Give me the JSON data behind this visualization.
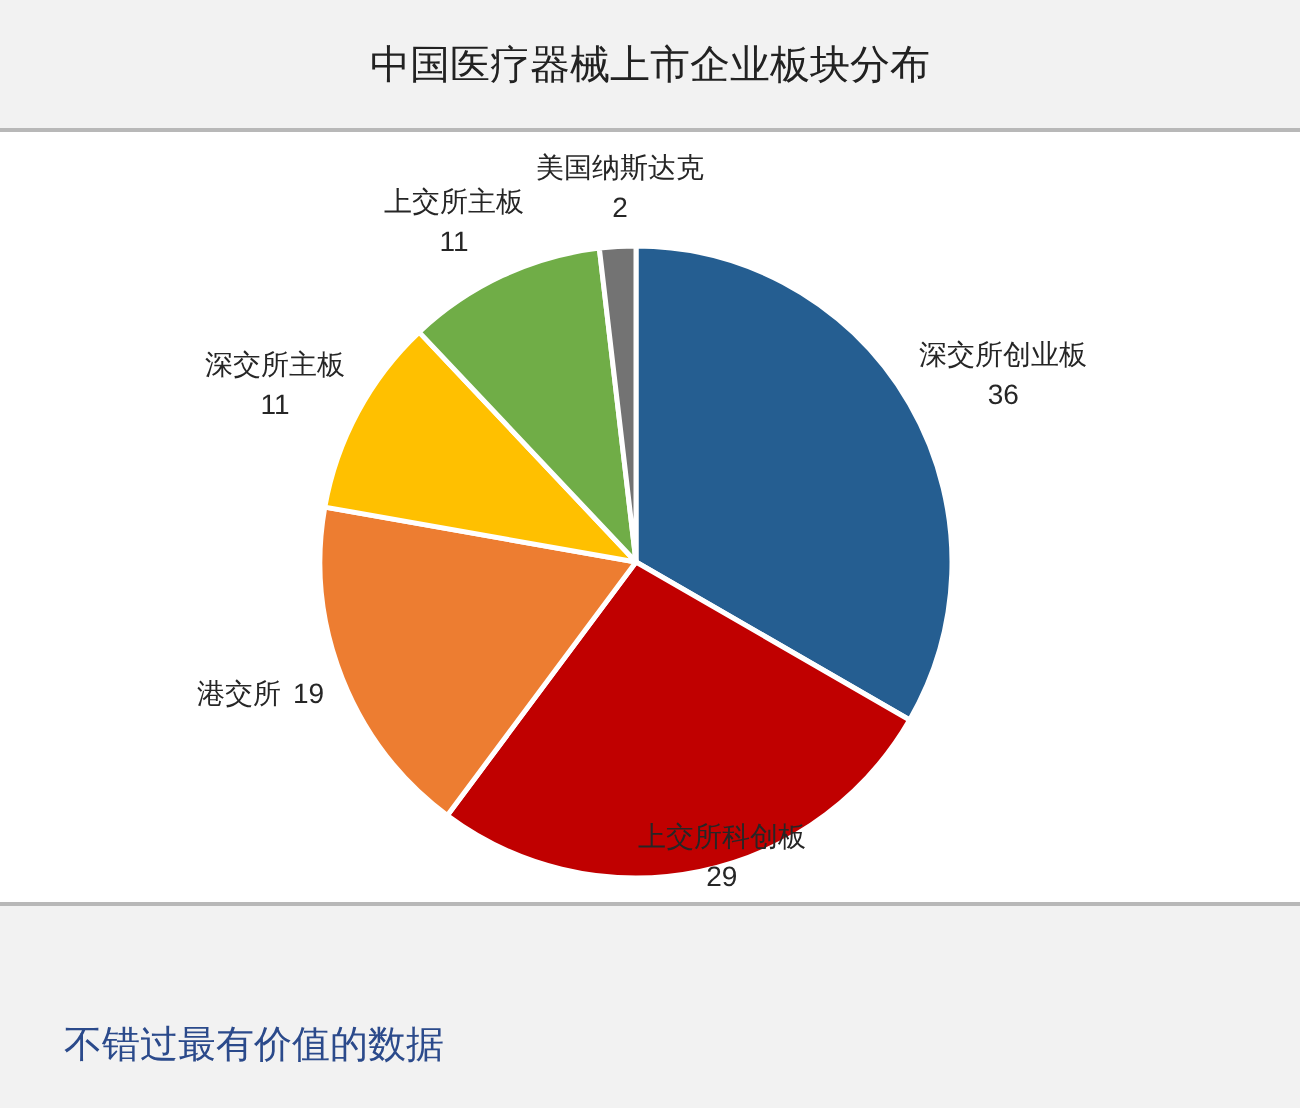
{
  "chart_data": {
    "type": "pie",
    "title": "中国医疗器械上市企业板块分布",
    "categories": [
      "深交所创业板",
      "上交所科创板",
      "港交所",
      "深交所主板",
      "上交所主板",
      "美国纳斯达克"
    ],
    "values": [
      36,
      29,
      19,
      11,
      11,
      2
    ],
    "colors": [
      "#255e91",
      "#c00000",
      "#ed7d31",
      "#ffc000",
      "#70ad47",
      "#737373"
    ],
    "data_labels": true,
    "annotations": [
      "不错过最有价值的数据"
    ]
  }
}
